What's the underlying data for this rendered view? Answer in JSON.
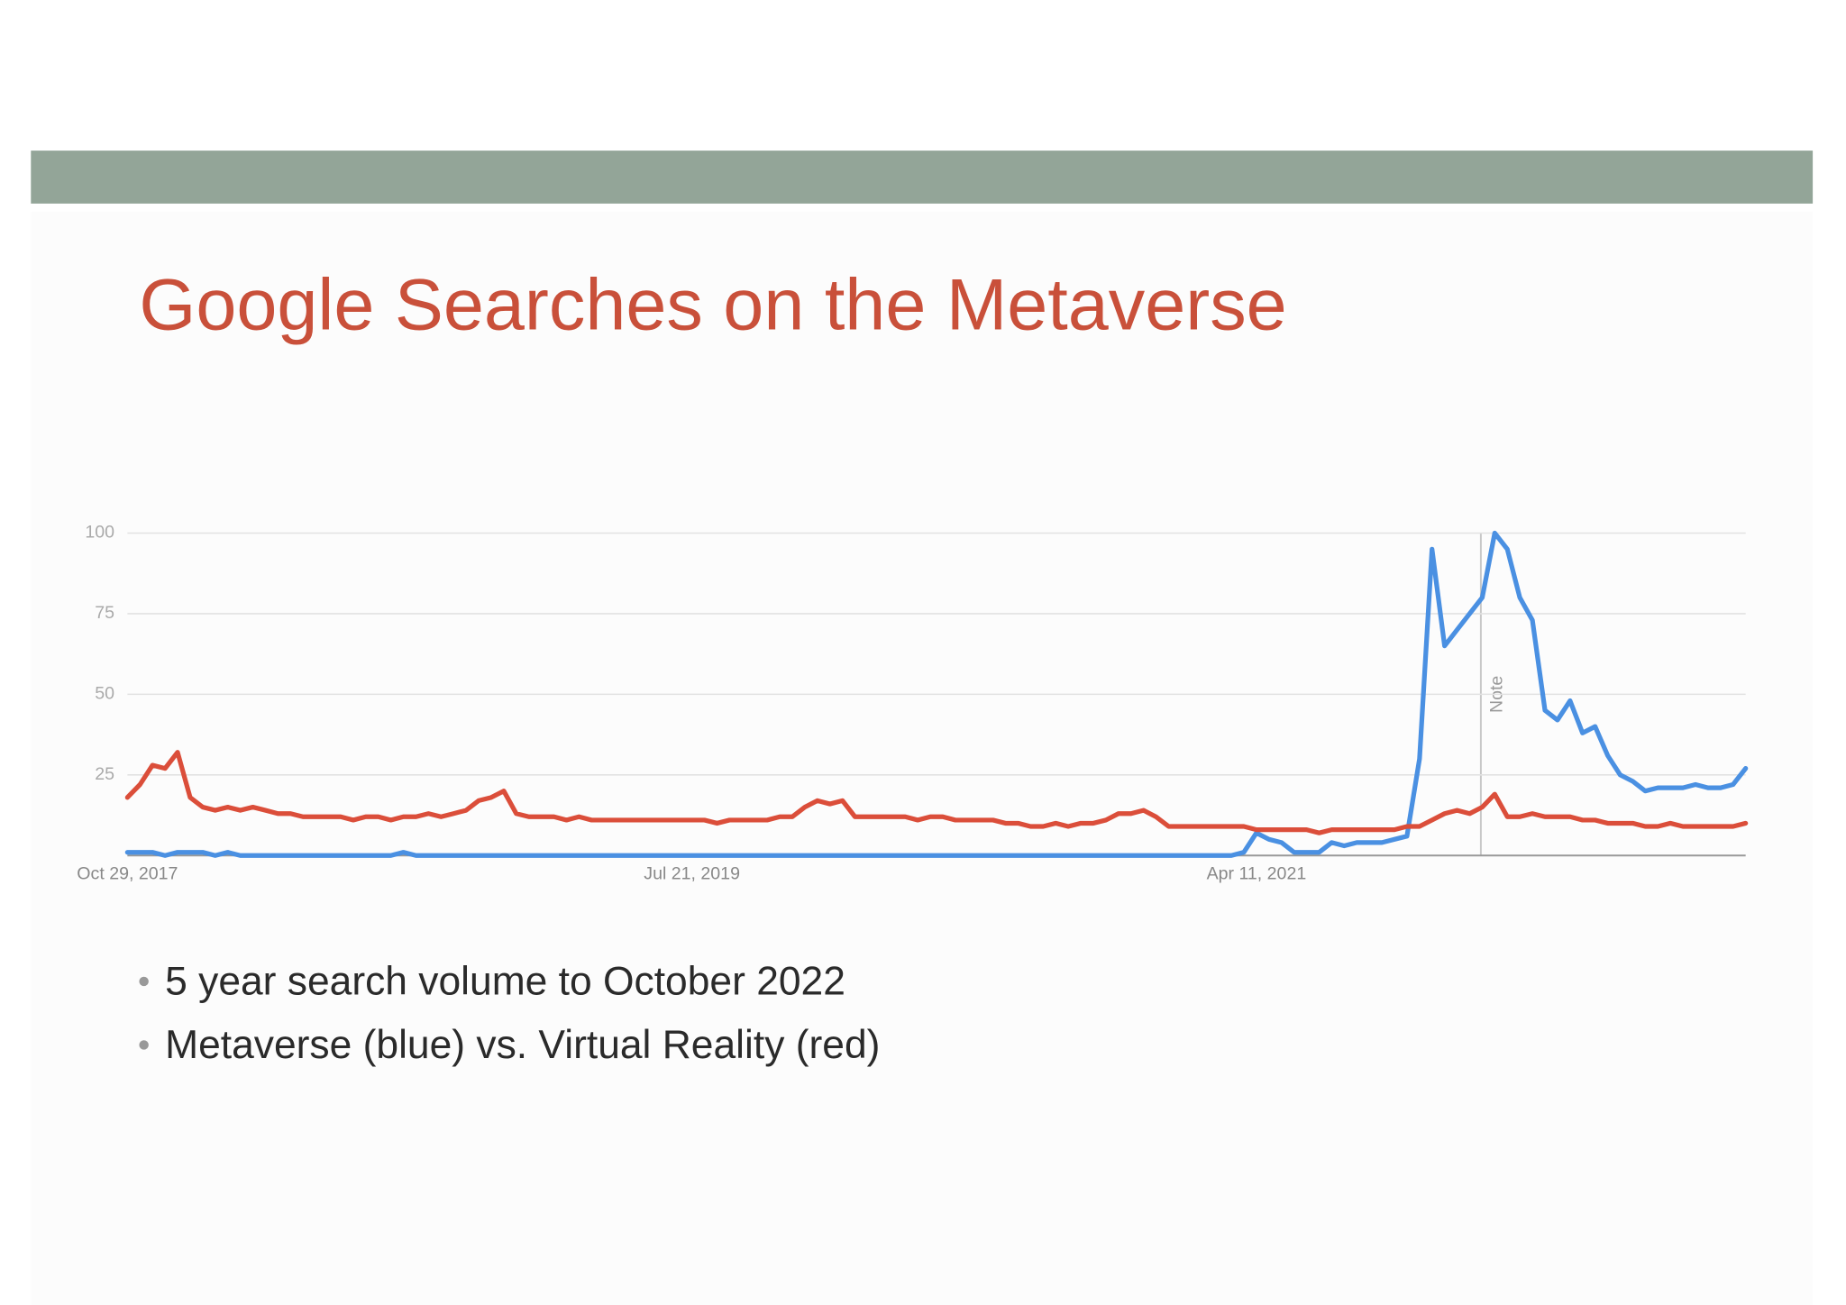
{
  "slide": {
    "title": "Google Searches on the Metaverse",
    "bullets": [
      "5 year search volume to October 2022",
      "Metaverse (blue) vs. Virtual Reality (red)"
    ]
  },
  "chart_data": {
    "type": "line",
    "categories": [
      "Oct 29, 2017",
      null,
      null,
      null,
      null,
      null,
      null,
      null,
      null,
      null,
      null,
      null,
      null,
      null,
      null,
      null,
      null,
      null,
      null,
      null,
      null,
      null,
      null,
      null,
      null,
      null,
      null,
      null,
      null,
      null,
      null,
      null,
      null,
      null,
      null,
      null,
      null,
      null,
      null,
      null,
      null,
      null,
      null,
      null,
      null,
      "Jul 21, 2019",
      null,
      null,
      null,
      null,
      null,
      null,
      null,
      null,
      null,
      null,
      null,
      null,
      null,
      null,
      null,
      null,
      null,
      null,
      null,
      null,
      null,
      null,
      null,
      null,
      null,
      null,
      null,
      null,
      null,
      null,
      null,
      null,
      null,
      null,
      null,
      null,
      null,
      null,
      null,
      null,
      null,
      null,
      null,
      null,
      "Apr 11, 2021",
      null,
      null,
      null,
      null,
      null,
      null,
      null,
      null,
      null,
      null,
      null,
      null,
      null,
      null,
      null,
      null,
      null,
      null,
      null,
      null,
      null,
      null,
      null,
      null,
      null,
      null,
      null,
      null,
      null,
      null,
      null,
      null,
      null,
      null,
      null,
      null,
      null,
      null,
      null
    ],
    "series": [
      {
        "color": "#4a90e2",
        "values": [
          1,
          1,
          1,
          0,
          1,
          1,
          1,
          0,
          1,
          0,
          0,
          0,
          0,
          0,
          0,
          0,
          0,
          0,
          0,
          0,
          0,
          0,
          1,
          0,
          0,
          0,
          0,
          0,
          0,
          0,
          0,
          0,
          0,
          0,
          0,
          0,
          0,
          0,
          0,
          0,
          0,
          0,
          0,
          0,
          0,
          0,
          0,
          0,
          0,
          0,
          0,
          0,
          0,
          0,
          0,
          0,
          0,
          0,
          0,
          0,
          0,
          0,
          0,
          0,
          0,
          0,
          0,
          0,
          0,
          0,
          0,
          0,
          0,
          0,
          0,
          0,
          0,
          0,
          0,
          0,
          0,
          0,
          0,
          0,
          0,
          0,
          0,
          0,
          0,
          1,
          7,
          5,
          4,
          1,
          1,
          1,
          4,
          3,
          4,
          4,
          4,
          5,
          6,
          30,
          95,
          65,
          70,
          75,
          80,
          100,
          95,
          80,
          73,
          45,
          42,
          48,
          38,
          40,
          31,
          25,
          23,
          20,
          21,
          21,
          21,
          22,
          21,
          21,
          22,
          27
        ]
      },
      {
        "color": "#db4e3a",
        "values": [
          18,
          22,
          28,
          27,
          32,
          18,
          15,
          14,
          15,
          14,
          15,
          14,
          13,
          13,
          12,
          12,
          12,
          12,
          11,
          12,
          12,
          11,
          12,
          12,
          13,
          12,
          13,
          14,
          17,
          18,
          20,
          13,
          12,
          12,
          12,
          11,
          12,
          11,
          11,
          11,
          11,
          11,
          11,
          11,
          11,
          11,
          11,
          10,
          11,
          11,
          11,
          11,
          12,
          12,
          15,
          17,
          16,
          17,
          12,
          12,
          12,
          12,
          12,
          11,
          12,
          12,
          11,
          11,
          11,
          11,
          10,
          10,
          9,
          9,
          10,
          9,
          10,
          10,
          11,
          13,
          13,
          14,
          12,
          9,
          9,
          9,
          9,
          9,
          9,
          9,
          8,
          8,
          8,
          8,
          8,
          7,
          8,
          8,
          8,
          8,
          8,
          8,
          9,
          9,
          11,
          13,
          14,
          13,
          15,
          19,
          12,
          12,
          13,
          12,
          12,
          12,
          11,
          11,
          10,
          10,
          10,
          9,
          9,
          10,
          9,
          9,
          9,
          9,
          9,
          10
        ]
      }
    ],
    "ylim": [
      0,
      100
    ],
    "yticks": [
      25,
      50,
      75,
      100
    ],
    "grid": true,
    "annotation": "Note"
  }
}
